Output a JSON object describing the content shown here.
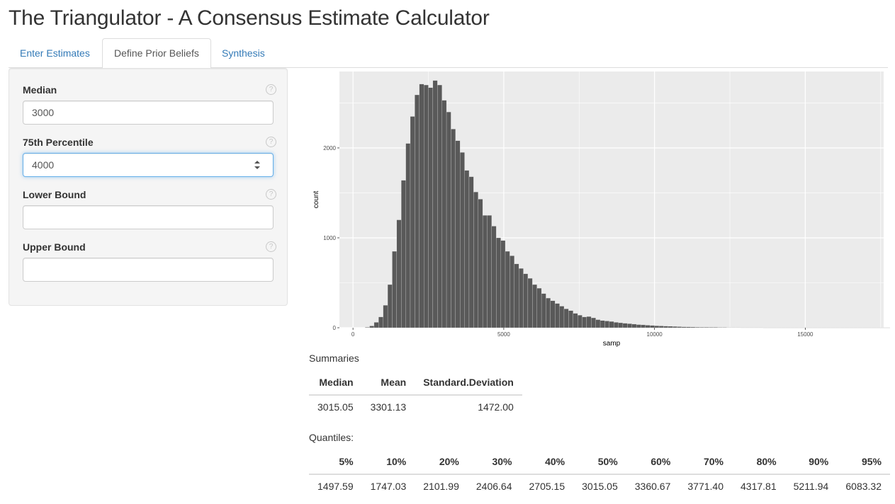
{
  "page": {
    "title": "The Triangulator - A Consensus Estimate Calculator"
  },
  "tabs": [
    {
      "label": "Enter Estimates",
      "active": false
    },
    {
      "label": "Define Prior Beliefs",
      "active": true
    },
    {
      "label": "Synthesis",
      "active": false
    }
  ],
  "form": {
    "help_icon": "question-circle-icon",
    "help_glyph": "?",
    "fields": [
      {
        "label": "Median",
        "value": "3000",
        "placeholder": ""
      },
      {
        "label": "75th Percentile",
        "value": "4000",
        "placeholder": ""
      },
      {
        "label": "Lower Bound",
        "value": "",
        "placeholder": ""
      },
      {
        "label": "Upper Bound",
        "value": "",
        "placeholder": ""
      }
    ]
  },
  "chart_data": {
    "type": "bar",
    "xlabel": "samp",
    "ylabel": "count",
    "xlim": [
      -450,
      17600
    ],
    "ylim": [
      0,
      2850
    ],
    "x_ticks": [
      0,
      5000,
      10000,
      15000
    ],
    "x_tick_labels": [
      "0",
      "5000",
      "10000",
      "15000"
    ],
    "y_ticks": [
      0,
      1000,
      2000
    ],
    "y_tick_labels": [
      "0",
      "1000",
      "2000"
    ],
    "grid": true,
    "bin_width": 150,
    "bin_start": 400,
    "counts": [
      5,
      20,
      60,
      120,
      250,
      480,
      850,
      1200,
      1640,
      2050,
      2350,
      2590,
      2710,
      2700,
      2670,
      2750,
      2700,
      2530,
      2400,
      2210,
      2080,
      1950,
      1750,
      1680,
      1510,
      1430,
      1250,
      1250,
      1130,
      1000,
      970,
      850,
      800,
      710,
      660,
      600,
      550,
      480,
      440,
      380,
      330,
      300,
      270,
      240,
      210,
      190,
      160,
      140,
      120,
      125,
      110,
      90,
      80,
      75,
      70,
      60,
      55,
      50,
      45,
      40,
      35,
      32,
      28,
      25,
      22,
      20,
      18,
      16,
      14,
      12,
      10,
      9,
      8,
      7,
      6,
      6,
      5,
      5,
      4,
      4,
      3,
      3,
      3,
      2,
      2,
      2,
      2,
      2,
      1,
      1,
      1,
      1,
      1,
      1,
      1,
      1,
      1,
      1,
      1,
      1,
      1,
      1,
      1,
      1,
      1,
      1,
      1,
      1,
      1,
      1,
      1,
      1,
      1,
      1,
      1,
      1,
      1,
      1,
      1,
      1
    ],
    "colors": {
      "bar": "#595959",
      "panel": "#ebebeb",
      "grid": "#ffffff",
      "axis_text": "#4d4d4d"
    }
  },
  "summaries": {
    "title": "Summaries",
    "headers": [
      "Median",
      "Mean",
      "Standard.Deviation"
    ],
    "rows": [
      [
        "3015.05",
        "3301.13",
        "1472.00"
      ]
    ]
  },
  "quantiles": {
    "title": "Quantiles:",
    "headers": [
      "5%",
      "10%",
      "20%",
      "30%",
      "40%",
      "50%",
      "60%",
      "70%",
      "80%",
      "90%",
      "95%"
    ],
    "rows": [
      [
        "1497.59",
        "1747.03",
        "2101.99",
        "2406.64",
        "2705.15",
        "3015.05",
        "3360.67",
        "3771.40",
        "4317.81",
        "5211.94",
        "6083.32"
      ]
    ]
  }
}
